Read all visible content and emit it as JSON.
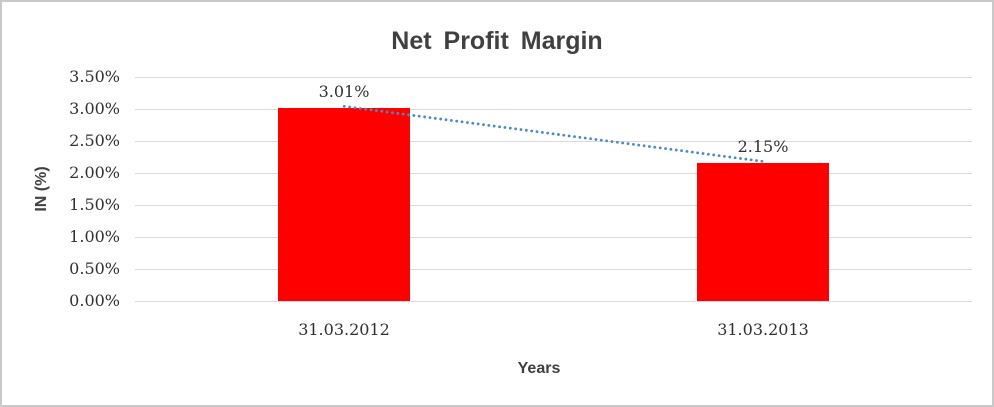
{
  "chart_data": {
    "type": "bar",
    "title": "Net Profit Margin",
    "xlabel": "Years",
    "ylabel": "IN (%)",
    "categories": [
      "31.03.2012",
      "31.03.2013"
    ],
    "values": [
      3.01,
      2.15
    ],
    "value_labels": [
      "3.01%",
      "2.15%"
    ],
    "yticks": [
      {
        "value": 3.5,
        "label": "3.50%"
      },
      {
        "value": 3.0,
        "label": "3.00%"
      },
      {
        "value": 2.5,
        "label": "2.50%"
      },
      {
        "value": 2.0,
        "label": "2.00%"
      },
      {
        "value": 1.5,
        "label": "1.50%"
      },
      {
        "value": 1.0,
        "label": "1.00%"
      },
      {
        "value": 0.5,
        "label": "0.50%"
      },
      {
        "value": 0.0,
        "label": "0.00%"
      }
    ],
    "ylim": [
      0,
      3.5
    ],
    "grid": true,
    "legend": false,
    "colors": {
      "bar": "#FF0000",
      "trendline": "#4A89C8",
      "gridline": "#D9D9D9"
    },
    "trendline": {
      "type": "linear",
      "style": "dotted",
      "from_value": 3.01,
      "to_value": 2.15
    }
  }
}
